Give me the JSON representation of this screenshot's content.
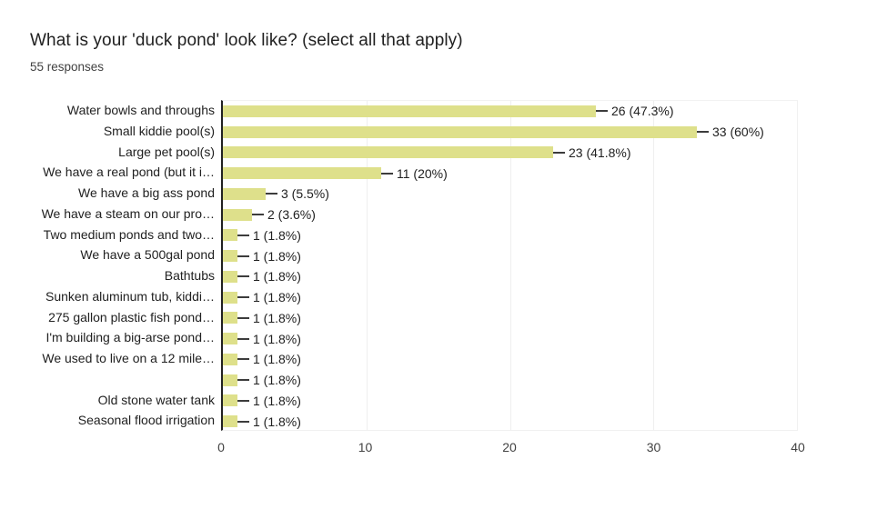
{
  "header": {
    "title": "What is your 'duck pond' look like? (select all that apply)",
    "subtitle": "55 responses"
  },
  "chart_data": {
    "type": "bar",
    "orientation": "horizontal",
    "title": "What is your 'duck pond' look like? (select all that apply)",
    "subtitle": "55 responses",
    "total_responses": 55,
    "categories": [
      "Water bowls and throughs",
      "Small kiddie pool(s)",
      "Large pet pool(s)",
      "We have a real pond (but it i…",
      "We have a big ass pond",
      "We have a steam on our pro…",
      "Two medium ponds and two…",
      "We have a 500gal pond",
      "Bathtubs",
      "Sunken aluminum tub, kiddi…",
      "275 gallon plastic fish pond…",
      "I'm building a big-arse pond…",
      "We used to live on a 12 mile…",
      "",
      "Old stone water tank",
      "Seasonal flood irrigation"
    ],
    "values": [
      26,
      33,
      23,
      11,
      3,
      2,
      1,
      1,
      1,
      1,
      1,
      1,
      1,
      1,
      1,
      1
    ],
    "value_labels": [
      "26 (47.3%)",
      "33 (60%)",
      "23 (41.8%)",
      "11 (20%)",
      "3 (5.5%)",
      "2 (3.6%)",
      "1 (1.8%)",
      "1 (1.8%)",
      "1 (1.8%)",
      "1 (1.8%)",
      "1 (1.8%)",
      "1 (1.8%)",
      "1 (1.8%)",
      "1 (1.8%)",
      "1 (1.8%)",
      "1 (1.8%)"
    ],
    "xlabel": "",
    "ylabel": "",
    "xlim": [
      0,
      40
    ],
    "x_ticks": [
      0,
      10,
      20,
      30,
      40
    ],
    "grid": true,
    "legend": "none",
    "bar_color": "#dee08b",
    "axis_color": "#212121",
    "gridline_color": "#efefef",
    "text_color": "#212121",
    "tick_color": "#424242"
  }
}
